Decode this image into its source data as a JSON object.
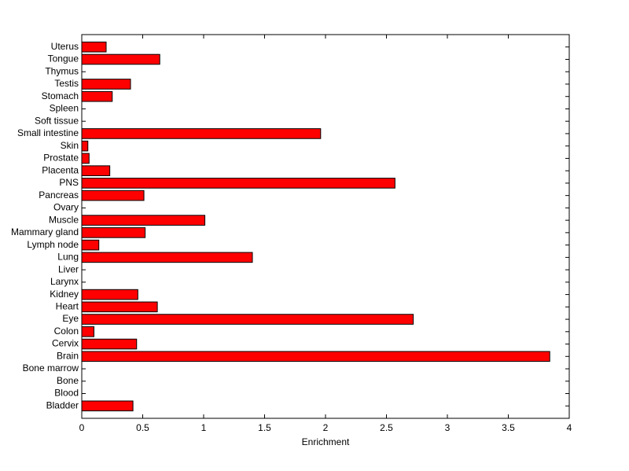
{
  "chart_data": {
    "type": "barh",
    "xlabel": "Enrichment",
    "categories": [
      "Bladder",
      "Blood",
      "Bone",
      "Bone marrow",
      "Brain",
      "Cervix",
      "Colon",
      "Eye",
      "Heart",
      "Kidney",
      "Larynx",
      "Liver",
      "Lung",
      "Lymph node",
      "Mammary gland",
      "Muscle",
      "Ovary",
      "Pancreas",
      "PNS",
      "Placenta",
      "Prostate",
      "Skin",
      "Small intestine",
      "Soft tissue",
      "Spleen",
      "Stomach",
      "Testis",
      "Thymus",
      "Tongue",
      "Uterus"
    ],
    "values": [
      0.42,
      0,
      0,
      0,
      3.84,
      0.45,
      0.1,
      2.72,
      0.62,
      0.46,
      0,
      0,
      1.4,
      0.14,
      0.52,
      1.01,
      0,
      0.51,
      2.57,
      0.23,
      0.06,
      0.05,
      1.96,
      0,
      0,
      0.25,
      0.4,
      0,
      0.64,
      0.2
    ],
    "color": "#ff0000",
    "xlim": [
      0,
      4
    ],
    "xticks": [
      0,
      0.5,
      1,
      1.5,
      2,
      2.5,
      3,
      3.5,
      4
    ]
  }
}
